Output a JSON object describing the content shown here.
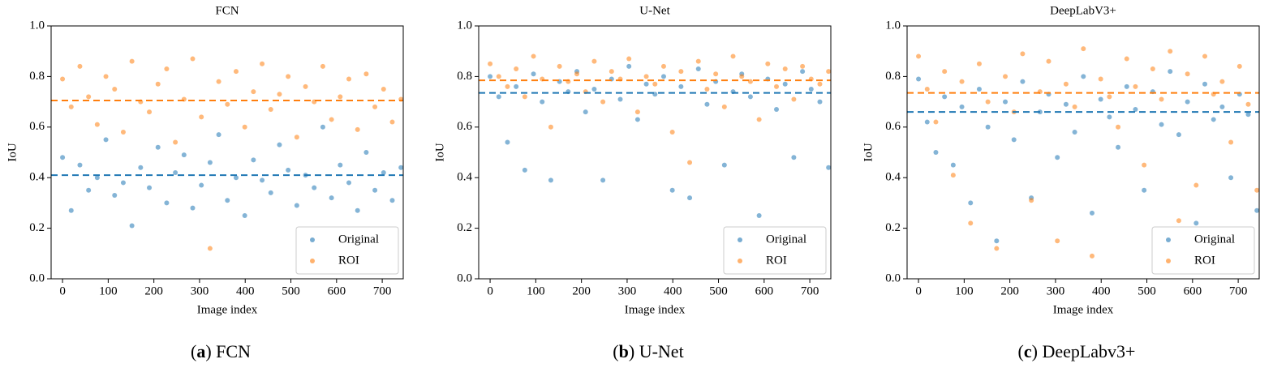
{
  "chart_data": [
    {
      "type": "scatter",
      "title": "FCN",
      "xlabel": "Image index",
      "ylabel": "IoU",
      "caption_prefix": "a",
      "caption": "FCN",
      "xlim": [
        -25,
        746
      ],
      "ylim": [
        0,
        1
      ],
      "xticks": [
        0,
        100,
        200,
        300,
        400,
        500,
        600,
        700
      ],
      "yticks": [
        {
          "value": 0,
          "label": "0.0"
        },
        0.2,
        0.4,
        0.6,
        0.8,
        {
          "value": 1,
          "label": "1.0"
        }
      ],
      "legend": "lower right",
      "grid": false,
      "x": [
        0,
        19,
        38,
        57,
        76,
        95,
        114,
        133,
        152,
        171,
        190,
        209,
        228,
        247,
        266,
        285,
        304,
        323,
        342,
        361,
        380,
        399,
        418,
        437,
        456,
        475,
        494,
        513,
        532,
        551,
        570,
        589,
        608,
        627,
        646,
        665,
        684,
        703,
        722,
        741
      ],
      "series": [
        {
          "name": "Original",
          "color": "#1f77b4",
          "mean": 0.41,
          "values": [
            0.48,
            0.27,
            0.45,
            0.35,
            0.4,
            0.55,
            0.33,
            0.38,
            0.21,
            0.44,
            0.36,
            0.52,
            0.3,
            0.42,
            0.49,
            0.28,
            0.37,
            0.46,
            0.57,
            0.31,
            0.4,
            0.25,
            0.47,
            0.39,
            0.34,
            0.53,
            0.43,
            0.29,
            0.41,
            0.36,
            0.6,
            0.32,
            0.45,
            0.38,
            0.27,
            0.5,
            0.35,
            0.42,
            0.31,
            0.44
          ]
        },
        {
          "name": "ROI",
          "color": "#ff7f0e",
          "mean": 0.705,
          "values": [
            0.79,
            0.68,
            0.84,
            0.72,
            0.61,
            0.8,
            0.75,
            0.58,
            0.86,
            0.7,
            0.66,
            0.77,
            0.83,
            0.54,
            0.71,
            0.87,
            0.64,
            0.12,
            0.78,
            0.69,
            0.82,
            0.6,
            0.74,
            0.85,
            0.67,
            0.73,
            0.8,
            0.56,
            0.76,
            0.7,
            0.84,
            0.63,
            0.72,
            0.79,
            0.59,
            0.81,
            0.68,
            0.75,
            0.62,
            0.71
          ]
        }
      ]
    },
    {
      "type": "scatter",
      "title": "U-Net",
      "xlabel": "Image index",
      "ylabel": "IoU",
      "caption_prefix": "b",
      "caption": "U-Net",
      "xlim": [
        -25,
        746
      ],
      "ylim": [
        0,
        1
      ],
      "xticks": [
        0,
        100,
        200,
        300,
        400,
        500,
        600,
        700
      ],
      "yticks": [
        {
          "value": 0,
          "label": "0.0"
        },
        0.2,
        0.4,
        0.6,
        0.8,
        {
          "value": 1,
          "label": "1.0"
        }
      ],
      "legend": "lower right",
      "grid": false,
      "x": [
        0,
        19,
        38,
        57,
        76,
        95,
        114,
        133,
        152,
        171,
        190,
        209,
        228,
        247,
        266,
        285,
        304,
        323,
        342,
        361,
        380,
        399,
        418,
        437,
        456,
        475,
        494,
        513,
        532,
        551,
        570,
        589,
        608,
        627,
        646,
        665,
        684,
        703,
        722,
        741
      ],
      "series": [
        {
          "name": "Original",
          "color": "#1f77b4",
          "mean": 0.735,
          "values": [
            0.8,
            0.72,
            0.54,
            0.76,
            0.43,
            0.81,
            0.7,
            0.39,
            0.78,
            0.74,
            0.82,
            0.66,
            0.75,
            0.39,
            0.79,
            0.71,
            0.84,
            0.63,
            0.77,
            0.73,
            0.8,
            0.35,
            0.76,
            0.32,
            0.83,
            0.69,
            0.78,
            0.45,
            0.74,
            0.81,
            0.72,
            0.25,
            0.79,
            0.67,
            0.77,
            0.48,
            0.82,
            0.75,
            0.7,
            0.44
          ]
        },
        {
          "name": "ROI",
          "color": "#ff7f0e",
          "mean": 0.785,
          "values": [
            0.85,
            0.8,
            0.76,
            0.83,
            0.72,
            0.88,
            0.79,
            0.6,
            0.84,
            0.78,
            0.81,
            0.74,
            0.86,
            0.7,
            0.82,
            0.79,
            0.87,
            0.66,
            0.8,
            0.77,
            0.84,
            0.58,
            0.82,
            0.46,
            0.86,
            0.75,
            0.81,
            0.68,
            0.88,
            0.8,
            0.78,
            0.63,
            0.85,
            0.76,
            0.83,
            0.71,
            0.84,
            0.79,
            0.77,
            0.82
          ]
        }
      ]
    },
    {
      "type": "scatter",
      "title": "DeepLabV3+",
      "xlabel": "Image index",
      "ylabel": "IoU",
      "caption_prefix": "c",
      "caption": "DeepLabv3+",
      "xlim": [
        -25,
        746
      ],
      "ylim": [
        0,
        1
      ],
      "xticks": [
        0,
        100,
        200,
        300,
        400,
        500,
        600,
        700
      ],
      "yticks": [
        {
          "value": 0,
          "label": "0.0"
        },
        0.2,
        0.4,
        0.6,
        0.8,
        {
          "value": 1,
          "label": "1.0"
        }
      ],
      "legend": "lower right",
      "grid": false,
      "x": [
        0,
        19,
        38,
        57,
        76,
        95,
        114,
        133,
        152,
        171,
        190,
        209,
        228,
        247,
        266,
        285,
        304,
        323,
        342,
        361,
        380,
        399,
        418,
        437,
        456,
        475,
        494,
        513,
        532,
        551,
        570,
        589,
        608,
        627,
        646,
        665,
        684,
        703,
        722,
        741
      ],
      "series": [
        {
          "name": "Original",
          "color": "#1f77b4",
          "mean": 0.66,
          "values": [
            0.79,
            0.62,
            0.5,
            0.72,
            0.45,
            0.68,
            0.3,
            0.75,
            0.6,
            0.15,
            0.7,
            0.55,
            0.78,
            0.32,
            0.66,
            0.73,
            0.48,
            0.69,
            0.58,
            0.8,
            0.26,
            0.71,
            0.64,
            0.52,
            0.76,
            0.67,
            0.35,
            0.74,
            0.61,
            0.82,
            0.57,
            0.7,
            0.22,
            0.77,
            0.63,
            0.68,
            0.4,
            0.73,
            0.65,
            0.27
          ]
        },
        {
          "name": "ROI",
          "color": "#ff7f0e",
          "mean": 0.735,
          "values": [
            0.88,
            0.75,
            0.62,
            0.82,
            0.41,
            0.78,
            0.22,
            0.85,
            0.7,
            0.12,
            0.8,
            0.66,
            0.89,
            0.31,
            0.74,
            0.86,
            0.15,
            0.77,
            0.68,
            0.91,
            0.09,
            0.79,
            0.72,
            0.6,
            0.87,
            0.76,
            0.45,
            0.83,
            0.71,
            0.9,
            0.23,
            0.81,
            0.37,
            0.88,
            0.73,
            0.78,
            0.54,
            0.84,
            0.69,
            0.35
          ]
        }
      ]
    }
  ]
}
